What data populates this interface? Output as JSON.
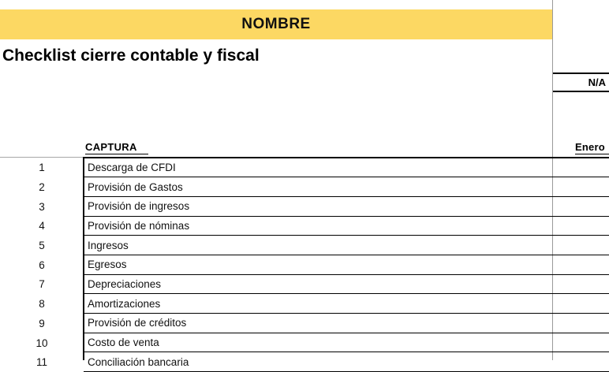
{
  "header": {
    "name_banner": "NOMBRE",
    "title": "Checklist cierre contable y fiscal",
    "na_value": "N/A"
  },
  "table": {
    "capture_header": "CAPTURA",
    "month_header": "Enero",
    "rows": [
      {
        "num": "1",
        "label": "Descarga de CFDI"
      },
      {
        "num": "2",
        "label": "Provisión de Gastos"
      },
      {
        "num": "3",
        "label": "Provisión de ingresos"
      },
      {
        "num": "4",
        "label": "Provisión de nóminas"
      },
      {
        "num": "5",
        "label": "Ingresos"
      },
      {
        "num": "6",
        "label": "Egresos"
      },
      {
        "num": "7",
        "label": "Depreciaciones"
      },
      {
        "num": "8",
        "label": "Amortizaciones"
      },
      {
        "num": "9",
        "label": "Provisión de créditos"
      },
      {
        "num": "10",
        "label": "Costo de venta"
      },
      {
        "num": "11",
        "label": "Conciliación bancaria"
      }
    ]
  },
  "colors": {
    "accent_yellow": "#fcd863",
    "grid_gray": "#9a9a9a",
    "border_black": "#000000"
  }
}
